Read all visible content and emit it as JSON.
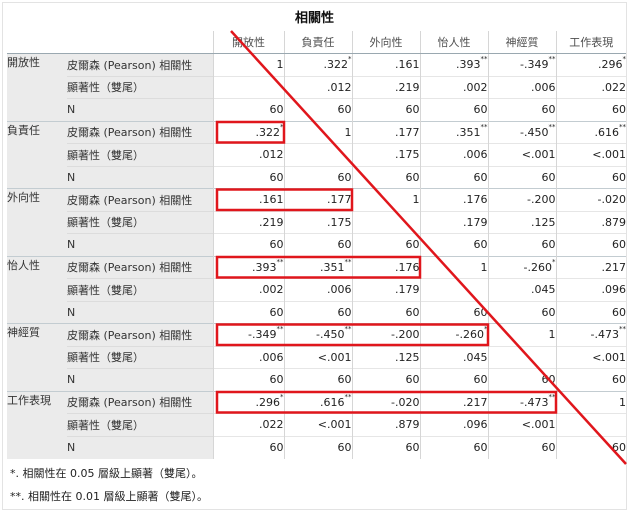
{
  "title": "相關性",
  "columns": [
    "開放性",
    "負責任",
    "外向性",
    "怡人性",
    "神經質",
    "工作表現"
  ],
  "stat_labels": {
    "pearson": "皮爾森 (Pearson) 相關性",
    "sig": "顯著性（雙尾）",
    "n": "N"
  },
  "rows": [
    {
      "name": "開放性",
      "pearson": [
        {
          "v": "1",
          "s": ""
        },
        {
          "v": ".322",
          "s": "*"
        },
        {
          "v": ".161",
          "s": ""
        },
        {
          "v": ".393",
          "s": "**"
        },
        {
          "v": "-.349",
          "s": "**"
        },
        {
          "v": ".296",
          "s": "*"
        }
      ],
      "sig": [
        "",
        ".012",
        ".219",
        ".002",
        ".006",
        ".022"
      ],
      "n": [
        "60",
        "60",
        "60",
        "60",
        "60",
        "60"
      ]
    },
    {
      "name": "負責任",
      "pearson": [
        {
          "v": ".322",
          "s": "*"
        },
        {
          "v": "1",
          "s": ""
        },
        {
          "v": ".177",
          "s": ""
        },
        {
          "v": ".351",
          "s": "**"
        },
        {
          "v": "-.450",
          "s": "**"
        },
        {
          "v": ".616",
          "s": "**"
        }
      ],
      "sig": [
        ".012",
        "",
        ".175",
        ".006",
        "<.001",
        "<.001"
      ],
      "n": [
        "60",
        "60",
        "60",
        "60",
        "60",
        "60"
      ]
    },
    {
      "name": "外向性",
      "pearson": [
        {
          "v": ".161",
          "s": ""
        },
        {
          "v": ".177",
          "s": ""
        },
        {
          "v": "1",
          "s": ""
        },
        {
          "v": ".176",
          "s": ""
        },
        {
          "v": "-.200",
          "s": ""
        },
        {
          "v": "-.020",
          "s": ""
        }
      ],
      "sig": [
        ".219",
        ".175",
        "",
        ".179",
        ".125",
        ".879"
      ],
      "n": [
        "60",
        "60",
        "60",
        "60",
        "60",
        "60"
      ]
    },
    {
      "name": "怡人性",
      "pearson": [
        {
          "v": ".393",
          "s": "**"
        },
        {
          "v": ".351",
          "s": "**"
        },
        {
          "v": ".176",
          "s": ""
        },
        {
          "v": "1",
          "s": ""
        },
        {
          "v": "-.260",
          "s": "*"
        },
        {
          "v": ".217",
          "s": ""
        }
      ],
      "sig": [
        ".002",
        ".006",
        ".179",
        "",
        ".045",
        ".096"
      ],
      "n": [
        "60",
        "60",
        "60",
        "60",
        "60",
        "60"
      ]
    },
    {
      "name": "神經質",
      "pearson": [
        {
          "v": "-.349",
          "s": "**"
        },
        {
          "v": "-.450",
          "s": "**"
        },
        {
          "v": "-.200",
          "s": ""
        },
        {
          "v": "-.260",
          "s": "*"
        },
        {
          "v": "1",
          "s": ""
        },
        {
          "v": "-.473",
          "s": "**"
        }
      ],
      "sig": [
        ".006",
        "<.001",
        ".125",
        ".045",
        "",
        "<.001"
      ],
      "n": [
        "60",
        "60",
        "60",
        "60",
        "60",
        "60"
      ]
    },
    {
      "name": "工作表現",
      "pearson": [
        {
          "v": ".296",
          "s": "*"
        },
        {
          "v": ".616",
          "s": "**"
        },
        {
          "v": "-.020",
          "s": ""
        },
        {
          "v": ".217",
          "s": ""
        },
        {
          "v": "-.473",
          "s": "**"
        },
        {
          "v": "1",
          "s": ""
        }
      ],
      "sig": [
        ".022",
        "<.001",
        ".879",
        ".096",
        "<.001",
        ""
      ],
      "n": [
        "60",
        "60",
        "60",
        "60",
        "60",
        "60"
      ]
    }
  ],
  "footnotes": [
    "*. 相關性在 0.05 層級上顯著（雙尾）。",
    "**. 相關性在 0.01 層級上顯著（雙尾）。"
  ],
  "annotation_color": "#e0161c"
}
